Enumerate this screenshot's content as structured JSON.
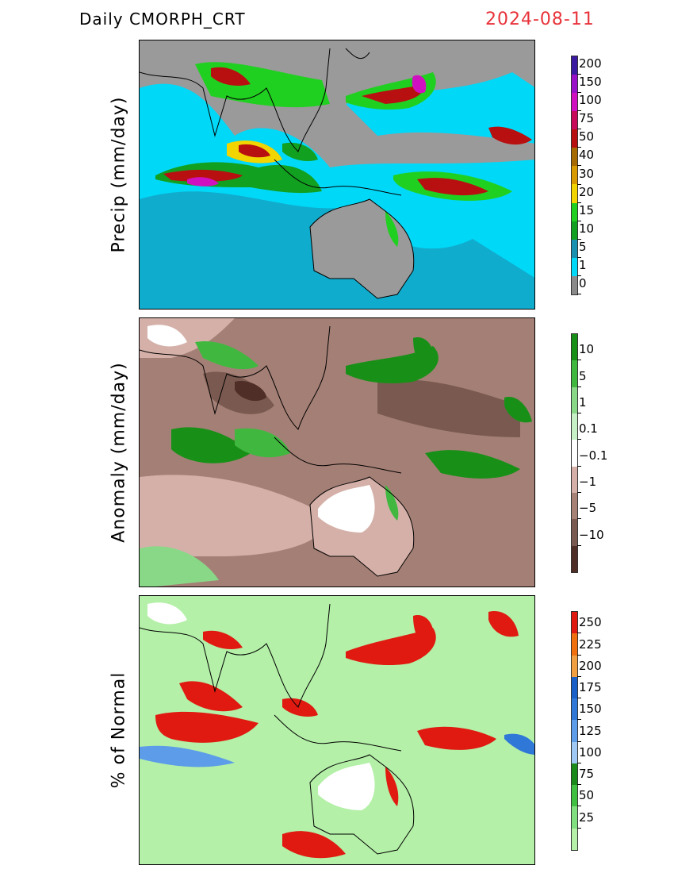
{
  "header": {
    "title": "Daily  CMORPH_CRT",
    "date": "2024-08-11"
  },
  "panels": [
    {
      "ylabel": "Precip  (mm/day)",
      "base_color": "#9a9a9a",
      "legend": {
        "labels": [
          "200",
          "150",
          "100",
          "75",
          "50",
          "40",
          "30",
          "20",
          "15",
          "10",
          "5",
          "1",
          "0"
        ],
        "colors": [
          "#3a1aa0",
          "#9a10c8",
          "#d010c0",
          "#c80a5a",
          "#b81010",
          "#a66a00",
          "#d99a00",
          "#f2d400",
          "#20d020",
          "#12a020",
          "#1a90b0",
          "#00d8f8",
          "#8a8a8a"
        ]
      }
    },
    {
      "ylabel": "Anomaly  (mm/day)",
      "base_color": "#a47f75",
      "legend": {
        "labels": [
          "10",
          "5",
          "1",
          "0.1",
          "−0.1",
          "−1",
          "−5",
          "−10"
        ],
        "colors": [
          "#189018",
          "#40b840",
          "#88d888",
          "#c6f0c6",
          "#ffffff",
          "#d4b0a8",
          "#a68276",
          "#7a5a50",
          "#502e28"
        ]
      }
    },
    {
      "ylabel": "%  of  Normal",
      "base_color": "#b4f0a8",
      "legend": {
        "labels": [
          "250",
          "225",
          "200",
          "175",
          "150",
          "125",
          "100",
          "75",
          "50",
          "25"
        ],
        "colors": [
          "#e01a10",
          "#f07010",
          "#f0a040",
          "#1860c8",
          "#3078d8",
          "#5c9ce8",
          "#a0c8f4",
          "#1a8a1a",
          "#40c040",
          "#80e080",
          "#b4f0a8"
        ]
      }
    }
  ]
}
